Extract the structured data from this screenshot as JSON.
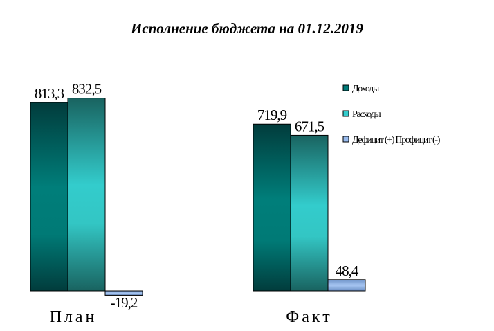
{
  "chart_data": {
    "type": "bar",
    "title": "Исполнение бюджета на 01.12.2019",
    "categories": [
      "План",
      "Факт"
    ],
    "series": [
      {
        "name": "Доходы",
        "values": [
          813.3,
          719.9
        ],
        "labels": [
          "813,3",
          "719,9"
        ],
        "color": "#007a78"
      },
      {
        "name": "Расходы",
        "values": [
          832.5,
          671.5
        ],
        "labels": [
          "832,5",
          "671,5"
        ],
        "color": "#33cccc"
      },
      {
        "name": "Дефицит (+) Профицит (-)",
        "values": [
          -19.2,
          48.4
        ],
        "labels": [
          "-19,2",
          "48,4"
        ],
        "color": "#99bbee"
      }
    ],
    "legend_position": "right",
    "grid": false,
    "ylim": [
      -19.2,
      832.5
    ]
  }
}
